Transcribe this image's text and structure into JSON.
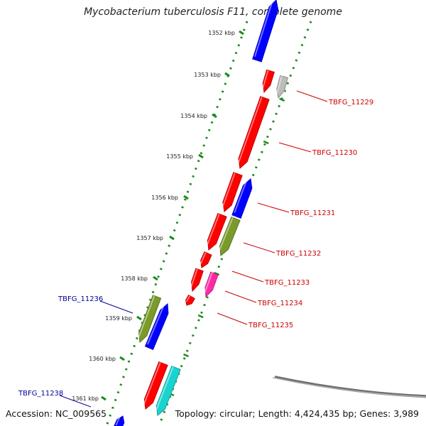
{
  "title": "Mycobacterium tuberculosis F11, complete genome",
  "accession": "Accession: NC_009565",
  "summary": "Topology: circular; Length: 4,424,435 bp; Genes: 3,989",
  "colors": {
    "forward": "#ff0000",
    "reverse": "#0000ff",
    "olive": "#7a9a2a",
    "magenta": "#ff2aa8",
    "cyan": "#19d3cf",
    "gray": "#bcbcbc",
    "tick": "#1a8a1a",
    "backbone": "#888888",
    "forward_label": "#cc0000",
    "reverse_label": "#000099"
  },
  "scale_ticks": [
    "1352 kbp",
    "1353 kbp",
    "1354 kbp",
    "1355 kbp",
    "1356 kbp",
    "1357 kbp",
    "1358 kbp",
    "1359 kbp",
    "1360 kbp",
    "1361 kbp"
  ],
  "gene_labels": [
    {
      "name": "TBFG_11229",
      "strand": "forward"
    },
    {
      "name": "TBFG_11230",
      "strand": "forward"
    },
    {
      "name": "TBFG_11231",
      "strand": "forward"
    },
    {
      "name": "TBFG_11232",
      "strand": "forward"
    },
    {
      "name": "TBFG_11233",
      "strand": "forward"
    },
    {
      "name": "TBFG_11234",
      "strand": "forward"
    },
    {
      "name": "TBFG_11235",
      "strand": "forward"
    },
    {
      "name": "TBFG_11236",
      "strand": "reverse"
    },
    {
      "name": "TBFG_11238",
      "strand": "reverse"
    }
  ]
}
